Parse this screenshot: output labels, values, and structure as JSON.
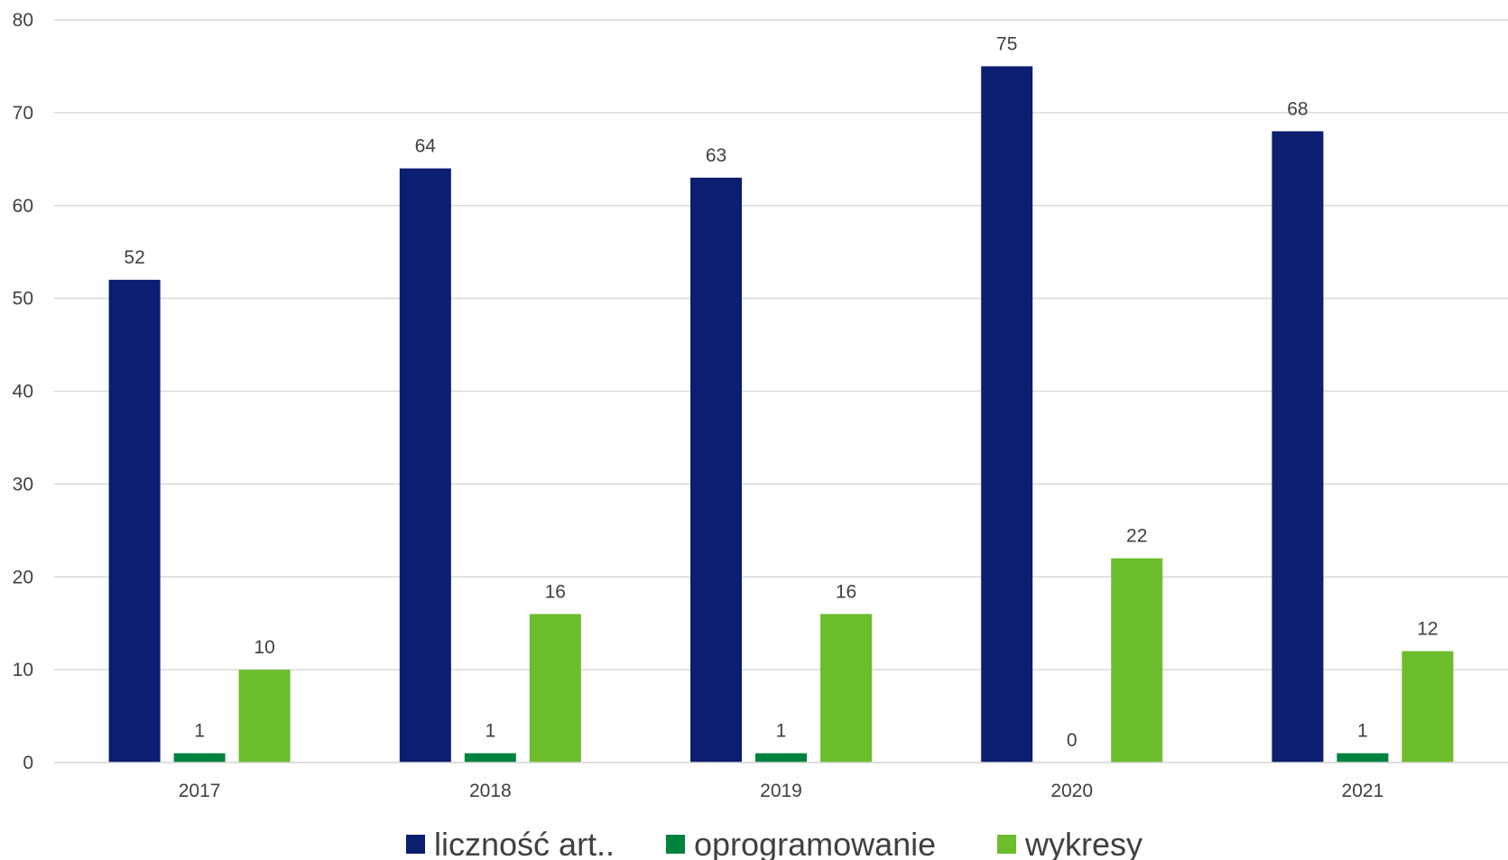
{
  "chart_data": {
    "type": "bar",
    "categories": [
      "2017",
      "2018",
      "2019",
      "2020",
      "2021"
    ],
    "series": [
      {
        "name": "liczność art..",
        "color": "#0b1e6f",
        "values": [
          52,
          64,
          63,
          75,
          68
        ]
      },
      {
        "name": "oprogramowanie",
        "color": "#00833e",
        "values": [
          1,
          1,
          1,
          0,
          1
        ]
      },
      {
        "name": "wykresy",
        "color": "#6cbd2c",
        "values": [
          10,
          16,
          16,
          22,
          12
        ]
      }
    ],
    "yticks": [
      "0",
      "10",
      "20",
      "30",
      "40",
      "50",
      "60",
      "70",
      "80"
    ],
    "ylim": [
      0,
      80
    ],
    "grid": true,
    "legend": "bottom",
    "title": "",
    "xlabel": "",
    "ylabel": ""
  }
}
